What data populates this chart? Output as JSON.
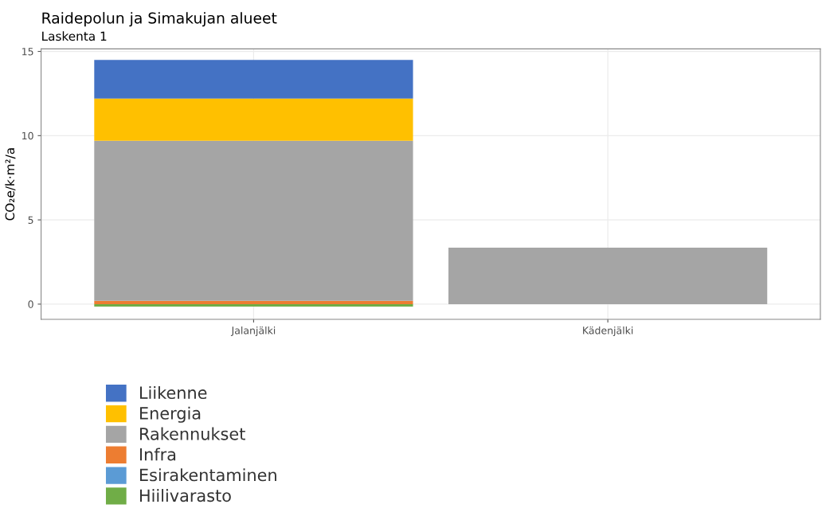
{
  "chart_data": {
    "type": "bar",
    "title": "Raidepolun ja Simakujan alueet",
    "subtitle": "Laskenta 1",
    "ylabel": "CO₂e/k·m²/a",
    "categories": [
      "Jalanjälki",
      "Kädenjälki"
    ],
    "stacked": true,
    "ylim": [
      -0.9,
      15.15
    ],
    "yticks": [
      0,
      5,
      10,
      15
    ],
    "grid": true,
    "legend": "bottom",
    "series": [
      {
        "name": "Hiilivarasto",
        "color": "#70ad47",
        "values": [
          -0.15,
          0
        ]
      },
      {
        "name": "Esirakentaminen",
        "color": "#5b9bd5",
        "values": [
          0,
          0
        ]
      },
      {
        "name": "Infra",
        "color": "#ed7d31",
        "values": [
          0.2,
          0
        ]
      },
      {
        "name": "Rakennukset",
        "color": "#a5a5a5",
        "values": [
          9.5,
          3.35
        ]
      },
      {
        "name": "Energia",
        "color": "#ffc000",
        "values": [
          2.5,
          0
        ]
      },
      {
        "name": "Liikenne",
        "color": "#4472c4",
        "values": [
          2.3,
          0
        ]
      }
    ]
  }
}
